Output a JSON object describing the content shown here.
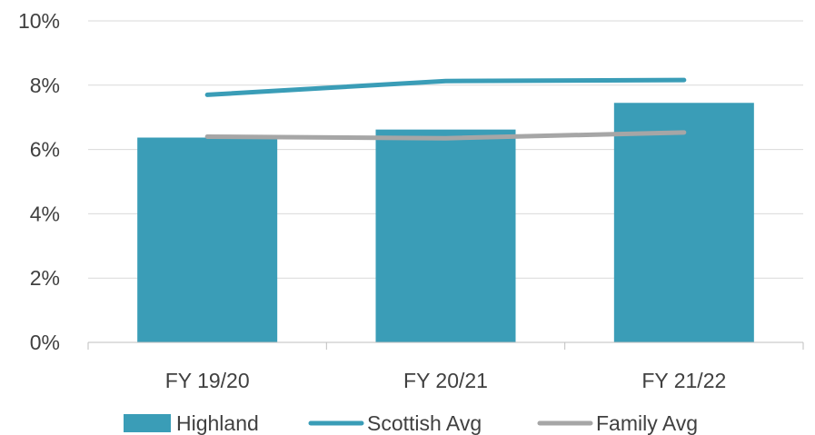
{
  "chart_data": {
    "type": "bar",
    "title": "",
    "xlabel": "",
    "ylabel": "",
    "categories": [
      "FY 19/20",
      "FY 20/21",
      "FY 21/22"
    ],
    "ylim": [
      0,
      10
    ],
    "y_unit": "%",
    "yticks": [
      0,
      2,
      4,
      6,
      8,
      10
    ],
    "ytick_labels": [
      "0%",
      "2%",
      "4%",
      "6%",
      "8%",
      "10%"
    ],
    "grid": true,
    "legend_position": "bottom",
    "series": [
      {
        "name": "Highland",
        "kind": "bar",
        "color": "#3a9db7",
        "values": [
          6.37,
          6.62,
          7.45
        ]
      },
      {
        "name": "Scottish Avg",
        "kind": "line",
        "color": "#3a9db7",
        "values": [
          7.7,
          8.13,
          8.16
        ]
      },
      {
        "name": "Family Avg",
        "kind": "line",
        "color": "#a6a6a6",
        "values": [
          6.4,
          6.35,
          6.53
        ]
      }
    ]
  }
}
